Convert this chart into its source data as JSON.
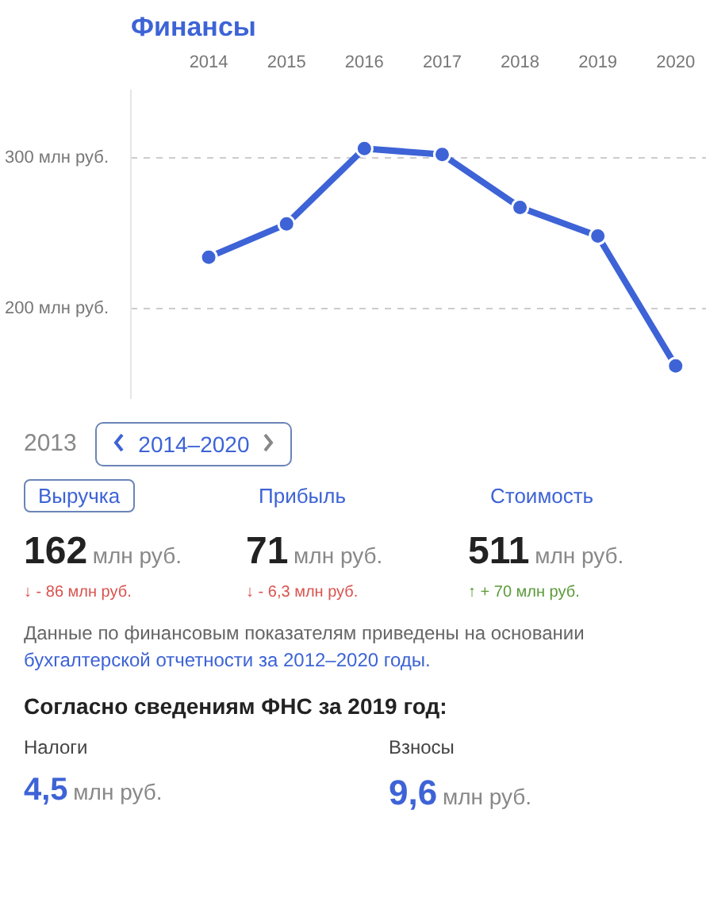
{
  "chart_data": {
    "type": "line",
    "title": "Финансы",
    "x": [
      2014,
      2015,
      2016,
      2017,
      2018,
      2019,
      2020
    ],
    "xlim": [
      2013,
      2020.4
    ],
    "xticks": [
      2014,
      2015,
      2016,
      2017,
      2018,
      2019,
      2020
    ],
    "ylim": [
      140,
      345
    ],
    "yticks": [
      {
        "value": 200,
        "label": "200 млн руб."
      },
      {
        "value": 300,
        "label": "300 млн руб."
      }
    ],
    "series": [
      {
        "color": "#3d63d6",
        "values": [
          234,
          256,
          306,
          302,
          267,
          248,
          162
        ]
      }
    ],
    "grid": "y",
    "marker": "circle",
    "line_style": "solid",
    "annotations": [
      "2013",
      "2014–2020",
      "Выручка",
      "Прибыль",
      "Стоимость",
      "162",
      "млн руб.",
      "71",
      "млн руб.",
      "511",
      "млн руб.",
      "↓ - 86 млн руб.",
      "↓ - 6,3 млн руб.",
      "↑ + 70 млн руб.",
      "Данные по финансовым показателям приведены на основании",
      "бухгалтерской отчетности за 2012–2020 годы.",
      "Согласно сведениям ФНС за 2019 год:",
      "Налоги",
      "Взносы",
      "4,5",
      "млн руб.",
      "9,6",
      "млн руб."
    ]
  }
}
